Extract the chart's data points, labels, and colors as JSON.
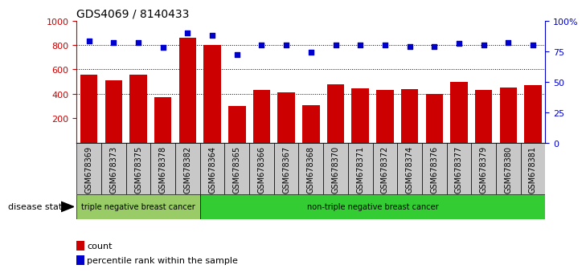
{
  "title": "GDS4069 / 8140433",
  "categories": [
    "GSM678369",
    "GSM678373",
    "GSM678375",
    "GSM678378",
    "GSM678382",
    "GSM678364",
    "GSM678365",
    "GSM678366",
    "GSM678367",
    "GSM678368",
    "GSM678370",
    "GSM678371",
    "GSM678372",
    "GSM678374",
    "GSM678376",
    "GSM678377",
    "GSM678379",
    "GSM678380",
    "GSM678381"
  ],
  "bar_values": [
    555,
    510,
    555,
    370,
    860,
    800,
    300,
    435,
    415,
    305,
    480,
    445,
    435,
    440,
    400,
    495,
    430,
    455,
    470
  ],
  "dot_values": [
    83,
    82,
    82,
    78,
    90,
    88,
    72,
    80,
    80,
    74,
    80,
    80,
    80,
    79,
    79,
    81,
    80,
    82,
    80
  ],
  "bar_color": "#cc0000",
  "dot_color": "#0000cc",
  "ylim_left": [
    0,
    1000
  ],
  "ylim_right": [
    0,
    100
  ],
  "yticks_left": [
    200,
    400,
    600,
    800,
    1000
  ],
  "yticks_right": [
    0,
    25,
    50,
    75,
    100
  ],
  "ytick_labels_right": [
    "0",
    "25",
    "50",
    "75",
    "100%"
  ],
  "grid_values": [
    400,
    600,
    800
  ],
  "n_triple_neg": 5,
  "disease_group1_label": "triple negative breast cancer",
  "disease_group2_label": "non-triple negative breast cancer",
  "disease_group1_color": "#99cc66",
  "disease_group2_color": "#33cc33",
  "disease_state_label": "disease state",
  "legend_count_label": "count",
  "legend_percentile_label": "percentile rank within the sample",
  "gray_color": "#c8c8c8",
  "tick_label_fontsize": 7,
  "title_fontsize": 10
}
